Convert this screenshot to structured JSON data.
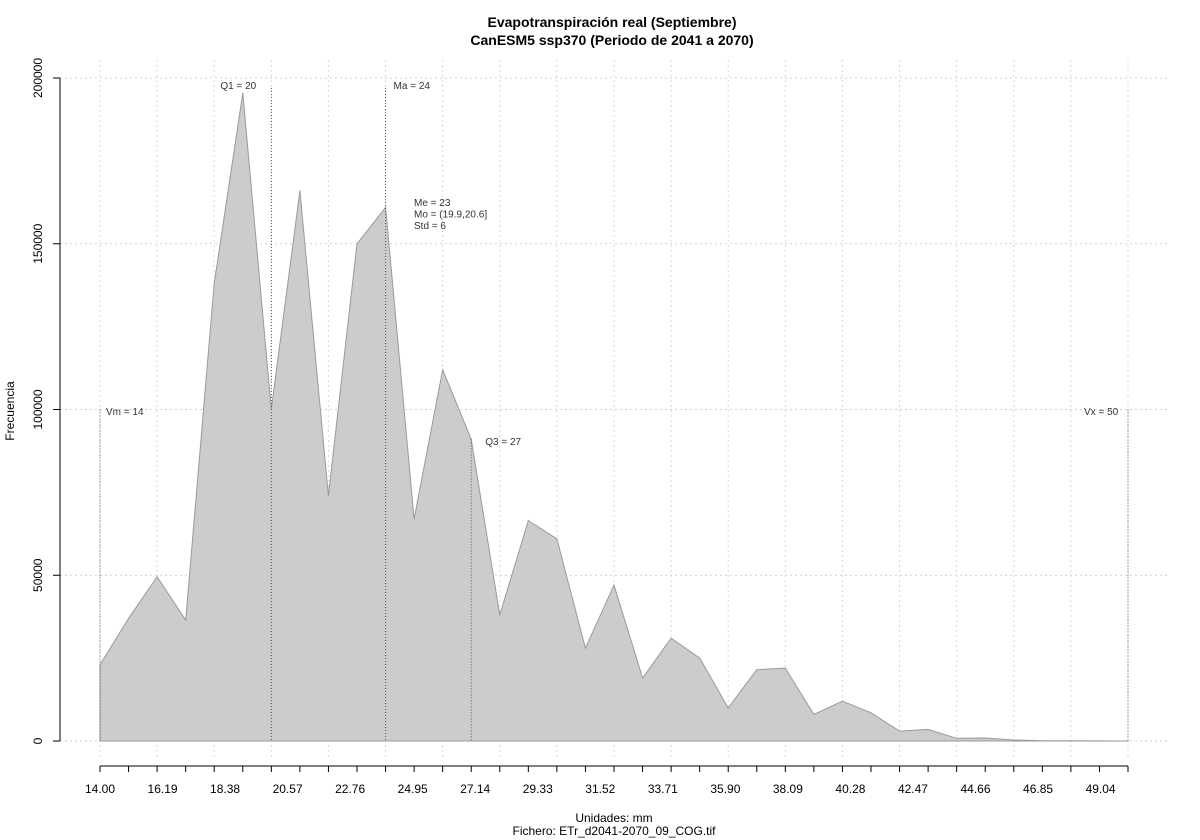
{
  "chart_data": {
    "type": "area",
    "title": "Evapotranspiración real (Septiembre)",
    "subtitle": "CanESM5 ssp370 (Periodo de 2041 a 2070)",
    "xlabel": "Unidades: mm",
    "caption": "Fichero: ETr_d2041-2070_09_COG.tif",
    "ylabel": "Frecuencia",
    "xlim": [
      14.0,
      50.0
    ],
    "ylim": [
      0,
      200000
    ],
    "x_ticks": [
      "14.00",
      "16.19",
      "18.38",
      "20.57",
      "22.76",
      "24.95",
      "27.14",
      "29.33",
      "31.52",
      "33.71",
      "35.90",
      "38.09",
      "40.28",
      "42.47",
      "44.66",
      "46.85",
      "49.04"
    ],
    "y_ticks": [
      "0",
      "50000",
      "100000",
      "150000",
      "200000"
    ],
    "grid": true,
    "fill_color": "#cccccc",
    "stroke_color": "#9a9a9a",
    "x": [
      14.0,
      15.0,
      16.0,
      17.0,
      18.0,
      19.0,
      20.0,
      21.0,
      22.0,
      23.0,
      24.0,
      25.0,
      26.0,
      27.0,
      28.0,
      29.0,
      30.0,
      31.0,
      32.0,
      33.0,
      34.0,
      35.0,
      36.0,
      37.0,
      38.0,
      39.0,
      40.0,
      41.0,
      42.0,
      43.0,
      44.0,
      45.0,
      46.0,
      47.0,
      48.0,
      49.0,
      50.0
    ],
    "values": [
      23000,
      37000,
      49500,
      36500,
      138000,
      195500,
      100000,
      166000,
      74000,
      150000,
      161000,
      67000,
      112000,
      91000,
      38000,
      66500,
      61000,
      28000,
      47000,
      19000,
      31000,
      25000,
      10000,
      21500,
      22000,
      8000,
      12000,
      8500,
      3000,
      3500,
      800,
      900,
      300,
      100,
      50,
      20,
      0
    ],
    "annotations": [
      {
        "label": "Vm = 14",
        "x": 14.0
      },
      {
        "label": "Q1 = 20",
        "x": 20.0
      },
      {
        "label": "Ma = 24",
        "x": 24.0
      },
      {
        "label": "Q3 = 27",
        "x": 27.0
      },
      {
        "label": "Vx = 50",
        "x": 50.0
      }
    ],
    "stats": [
      "Me = 23",
      "Mo = (19.9,20.6]",
      "Std = 6"
    ]
  }
}
